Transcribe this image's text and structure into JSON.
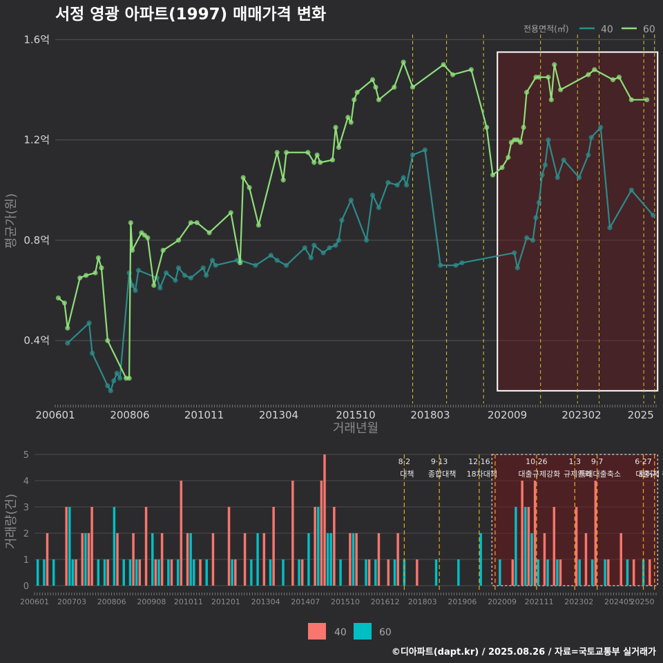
{
  "chart_data": [
    {
      "type": "line",
      "title": "서정 영광 아파트(1997) 매매가격 변화",
      "xlabel": "거래년월",
      "ylabel": "평균가(원)",
      "xlim": [
        2006.0,
        2025.5
      ],
      "ylim": [
        0.15,
        1.62
      ],
      "y_ticks": [
        {
          "value": 0.4,
          "label": "0.4억"
        },
        {
          "value": 0.8,
          "label": "0.8억"
        },
        {
          "value": 1.2,
          "label": "1.2억"
        },
        {
          "value": 1.6,
          "label": "1.6억"
        }
      ],
      "x_ticks": [
        {
          "value": 2006.0,
          "label": "200601"
        },
        {
          "value": 2008.42,
          "label": "200806"
        },
        {
          "value": 2010.83,
          "label": "201011"
        },
        {
          "value": 2013.25,
          "label": "201304"
        },
        {
          "value": 2015.75,
          "label": "201510"
        },
        {
          "value": 2018.17,
          "label": "201803"
        },
        {
          "value": 2020.67,
          "label": "202009"
        },
        {
          "value": 2023.08,
          "label": "202302"
        },
        {
          "value": 2025.0,
          "label": "2025"
        }
      ],
      "legend_title": "전용면적(㎡)",
      "series": [
        {
          "name": "40",
          "color": "#2e8b8b",
          "x": [
            2006.4,
            2007.1,
            2007.2,
            2007.7,
            2007.8,
            2007.9,
            2008.0,
            2008.1,
            2008.4,
            2008.5,
            2008.6,
            2008.7,
            2009.3,
            2009.4,
            2009.6,
            2009.9,
            2010.0,
            2010.2,
            2010.4,
            2010.8,
            2010.9,
            2011.1,
            2011.2,
            2011.9,
            2012.0,
            2012.5,
            2013.0,
            2013.2,
            2013.5,
            2014.1,
            2014.3,
            2014.4,
            2014.7,
            2014.9,
            2015.1,
            2015.2,
            2015.3,
            2015.6,
            2016.1,
            2016.3,
            2016.5,
            2016.8,
            2017.1,
            2017.3,
            2017.4,
            2017.6,
            2018.0,
            2018.5,
            2019.0,
            2019.2,
            2020.9,
            2021.0,
            2021.3,
            2021.5,
            2021.6,
            2021.7,
            2021.8,
            2021.9,
            2022.0,
            2022.3,
            2022.5,
            2023.0,
            2023.3,
            2023.4,
            2023.7,
            2024.0,
            2024.7,
            2025.4
          ],
          "values": [
            0.39,
            0.47,
            0.35,
            0.22,
            0.2,
            0.24,
            0.27,
            0.25,
            0.67,
            0.62,
            0.6,
            0.68,
            0.65,
            0.61,
            0.67,
            0.64,
            0.69,
            0.66,
            0.65,
            0.69,
            0.66,
            0.72,
            0.7,
            0.72,
            0.72,
            0.7,
            0.74,
            0.72,
            0.7,
            0.77,
            0.73,
            0.78,
            0.75,
            0.77,
            0.78,
            0.8,
            0.88,
            0.96,
            0.8,
            0.98,
            0.93,
            1.03,
            1.02,
            1.05,
            1.02,
            1.14,
            1.16,
            0.7,
            0.7,
            0.71,
            0.75,
            0.69,
            0.81,
            0.8,
            0.89,
            0.95,
            1.06,
            1.1,
            1.2,
            1.05,
            1.12,
            1.05,
            1.14,
            1.21,
            1.25,
            0.85,
            1.0,
            0.9
          ]
        },
        {
          "name": "60",
          "color": "#8fe07a",
          "x": [
            2006.1,
            2006.3,
            2006.4,
            2006.8,
            2007.0,
            2007.3,
            2007.4,
            2007.5,
            2007.7,
            2008.3,
            2008.4,
            2008.45,
            2008.5,
            2008.8,
            2008.9,
            2009.0,
            2009.2,
            2009.5,
            2010.0,
            2010.4,
            2010.6,
            2011.0,
            2011.7,
            2012.0,
            2012.1,
            2012.3,
            2012.6,
            2013.2,
            2013.4,
            2013.5,
            2014.2,
            2014.4,
            2014.5,
            2014.6,
            2015.0,
            2015.1,
            2015.2,
            2015.5,
            2015.6,
            2015.7,
            2015.8,
            2016.3,
            2016.4,
            2016.5,
            2017.0,
            2017.3,
            2017.6,
            2018.6,
            2018.9,
            2019.5,
            2020.0,
            2020.2,
            2020.5,
            2020.7,
            2020.8,
            2020.9,
            2021.0,
            2021.1,
            2021.2,
            2021.3,
            2021.6,
            2021.7,
            2022.0,
            2022.1,
            2022.2,
            2022.4,
            2023.3,
            2023.5,
            2024.1,
            2024.3,
            2024.7,
            2025.2
          ],
          "values": [
            0.57,
            0.55,
            0.45,
            0.65,
            0.66,
            0.67,
            0.73,
            0.69,
            0.4,
            0.25,
            0.25,
            0.87,
            0.76,
            0.83,
            0.82,
            0.81,
            0.62,
            0.76,
            0.8,
            0.87,
            0.87,
            0.83,
            0.91,
            0.71,
            1.05,
            1.01,
            0.86,
            1.15,
            1.04,
            1.15,
            1.15,
            1.11,
            1.14,
            1.11,
            1.12,
            1.25,
            1.17,
            1.29,
            1.27,
            1.36,
            1.39,
            1.44,
            1.41,
            1.36,
            1.41,
            1.51,
            1.41,
            1.5,
            1.46,
            1.48,
            1.25,
            1.06,
            1.09,
            1.13,
            1.19,
            1.2,
            1.2,
            1.19,
            1.25,
            1.39,
            1.45,
            1.45,
            1.45,
            1.36,
            1.5,
            1.4,
            1.46,
            1.48,
            1.44,
            1.45,
            1.36,
            1.36
          ]
        }
      ],
      "highlight_region": {
        "x": [
          2020.35,
          2025.55
        ],
        "y": [
          0.2,
          1.55
        ]
      },
      "policy_lines": [
        2017.6,
        2018.7,
        2019.9,
        2021.75,
        2022.95,
        2023.65,
        2025.1,
        2025.45
      ]
    },
    {
      "type": "bar",
      "ylabel": "거래량(건)",
      "ylim": [
        0,
        5
      ],
      "y_ticks": [
        0,
        1,
        2,
        3,
        4,
        5
      ],
      "x_ticks": [
        {
          "value": 2006.0,
          "label": "200601"
        },
        {
          "value": 2007.17,
          "label": "200703"
        },
        {
          "value": 2008.42,
          "label": "200806"
        },
        {
          "value": 2009.67,
          "label": "200908"
        },
        {
          "value": 2010.83,
          "label": "201011"
        },
        {
          "value": 2012.0,
          "label": "201201"
        },
        {
          "value": 2013.25,
          "label": "201304"
        },
        {
          "value": 2014.5,
          "label": "201407"
        },
        {
          "value": 2015.75,
          "label": "201510"
        },
        {
          "value": 2017.0,
          "label": "201612"
        },
        {
          "value": 2018.17,
          "label": "201803"
        },
        {
          "value": 2019.42,
          "label": "201906"
        },
        {
          "value": 2020.67,
          "label": "202009"
        },
        {
          "value": 2021.83,
          "label": "202111"
        },
        {
          "value": 2023.08,
          "label": "202302"
        },
        {
          "value": 2024.33,
          "label": "202405"
        },
        {
          "value": 2025.5,
          "label": "20250"
        }
      ],
      "series": [
        {
          "name": "40",
          "color": "#f8766d",
          "x": [
            2006.4,
            2007.0,
            2007.3,
            2007.5,
            2007.7,
            2007.8,
            2008.3,
            2008.6,
            2009.1,
            2009.3,
            2009.5,
            2009.8,
            2010.0,
            2010.3,
            2010.6,
            2010.8,
            2011.2,
            2011.6,
            2012.1,
            2012.3,
            2012.6,
            2013.2,
            2013.5,
            2014.1,
            2014.4,
            2014.8,
            2015.0,
            2015.1,
            2015.4,
            2015.9,
            2016.1,
            2016.5,
            2016.8,
            2017.1,
            2017.4,
            2018.0,
            2021.0,
            2021.3,
            2021.5,
            2021.7,
            2022.0,
            2022.3,
            2022.5,
            2023.0,
            2023.3,
            2023.6,
            2024.0,
            2024.4,
            2024.8,
            2025.3
          ],
          "values": [
            2,
            3,
            1,
            2,
            2,
            3,
            1,
            2,
            2,
            1,
            3,
            1,
            2,
            1,
            4,
            2,
            1,
            2,
            3,
            1,
            2,
            2,
            3,
            4,
            1,
            3,
            4,
            5,
            3,
            2,
            2,
            1,
            2,
            1,
            2,
            1,
            1,
            4,
            3,
            4,
            2,
            3,
            1,
            3,
            2,
            4,
            1,
            2,
            1,
            1
          ]
        },
        {
          "name": "60",
          "color": "#00bfc4",
          "x": [
            2006.1,
            2006.3,
            2006.6,
            2007.1,
            2007.2,
            2007.6,
            2008.0,
            2008.2,
            2008.5,
            2008.8,
            2009.0,
            2009.2,
            2009.7,
            2009.9,
            2010.2,
            2010.5,
            2010.9,
            2011.0,
            2011.4,
            2012.2,
            2012.8,
            2013.0,
            2013.4,
            2013.8,
            2014.3,
            2014.6,
            2014.9,
            2015.2,
            2015.3,
            2015.6,
            2016.0,
            2016.4,
            2016.7,
            2017.3,
            2017.6,
            2018.6,
            2019.3,
            2020.0,
            2020.6,
            2021.1,
            2021.4,
            2021.6,
            2021.8,
            2022.1,
            2022.4,
            2023.1,
            2023.5,
            2023.9,
            2024.6,
            2025.1
          ],
          "values": [
            1,
            1,
            1,
            3,
            1,
            2,
            1,
            1,
            3,
            1,
            1,
            1,
            2,
            1,
            1,
            1,
            2,
            1,
            1,
            1,
            1,
            2,
            1,
            1,
            1,
            2,
            3,
            2,
            2,
            1,
            2,
            1,
            1,
            1,
            1,
            1,
            1,
            2,
            1,
            3,
            3,
            2,
            1,
            1,
            1,
            1,
            1,
            1,
            1,
            1
          ]
        }
      ],
      "highlight_region": {
        "x": [
          2020.35,
          2025.55
        ],
        "y": [
          0,
          5
        ]
      },
      "policy_events": [
        {
          "x": 2017.6,
          "date": "8·2",
          "label": "대책"
        },
        {
          "x": 2018.7,
          "date": "9·13",
          "label": "종합대책"
        },
        {
          "x": 2019.95,
          "date": "12·16",
          "label": "18차대책"
        },
        {
          "x": 2020.45,
          "date": "",
          "label": ""
        },
        {
          "x": 2021.75,
          "date": "10·26",
          "label": "대출규제강화"
        },
        {
          "x": 2022.95,
          "date": "1·3",
          "label": "규제완화"
        },
        {
          "x": 2023.65,
          "date": "9·7",
          "label": "특례대출축소"
        },
        {
          "x": 2025.1,
          "date": "6·27",
          "label": "대출규"
        },
        {
          "x": 2025.45,
          "date": "",
          "label": "토허제 해제"
        }
      ]
    }
  ],
  "footer": "©디아파트(dapt.kr) / 2025.08.26 / 자료=국토교통부 실거래가"
}
